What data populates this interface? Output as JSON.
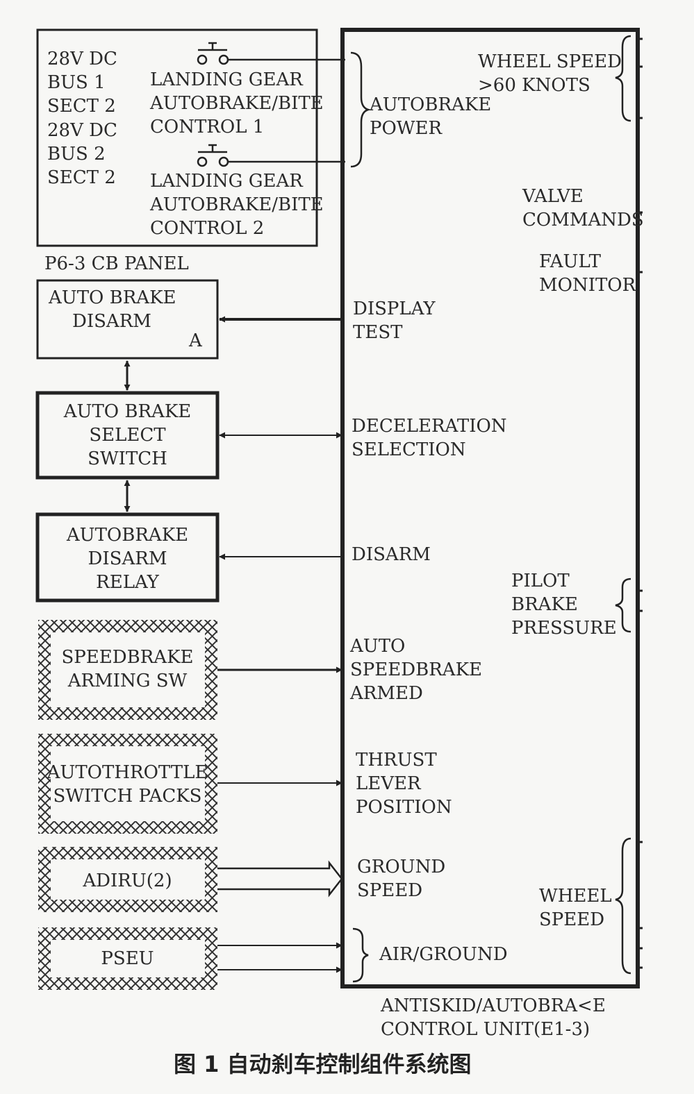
{
  "cb_panel": {
    "title": "P6-3 CB PANEL",
    "bus1": [
      "28V DC",
      "BUS 1",
      "SECT 2"
    ],
    "bus2": [
      "28V DC",
      "BUS 2",
      "SECT 2"
    ],
    "breaker1": [
      "LANDING GEAR",
      "AUTOBRAKE/BITE",
      "CONTROL 1"
    ],
    "breaker2": [
      "LANDING GEAR",
      "AUTOBRAKE/BITE",
      "CONTROL 2"
    ]
  },
  "left_boxes": {
    "disarm_light": {
      "lines": [
        "AUTO BRAKE",
        "DISARM"
      ],
      "tag": "A"
    },
    "select_switch": [
      "AUTO BRAKE",
      "SELECT",
      "SWITCH"
    ],
    "disarm_relay": [
      "AUTOBRAKE",
      "DISARM",
      "RELAY"
    ],
    "speedbrake": [
      "SPEEDBRAKE",
      "ARMING SW"
    ],
    "autothrottle": [
      "AUTOTHROTTLE",
      "SWITCH PACKS"
    ],
    "adiru": "ADIRU(2)",
    "pseu": "PSEU"
  },
  "signals": {
    "autobrake_power": [
      "AUTOBRAKE",
      "POWER"
    ],
    "display_test": [
      "DISPLAY",
      "TEST"
    ],
    "deceleration": [
      "DECELERATION",
      "SELECTION"
    ],
    "disarm": "DISARM",
    "auto_speedbrake": [
      "AUTO",
      "SPEEDBRAKE",
      "ARMED"
    ],
    "thrust_lever": [
      "THRUST",
      "LEVER",
      "POSITION"
    ],
    "ground_speed": [
      "GROUND",
      "SPEED"
    ],
    "air_ground": "AIR/GROUND"
  },
  "right_signals": {
    "wheel_speed_60": [
      "WHEEL SPEED",
      ">60 KNOTS"
    ],
    "valve_commands": [
      "VALVE",
      "COMMANDS"
    ],
    "fault_monitor": [
      "FAULT",
      "MONITOR"
    ],
    "pilot_brake": [
      "PILOT",
      "BRAKE",
      "PRESSURE"
    ],
    "wheel_speed": [
      "WHEEL",
      "SPEED"
    ]
  },
  "control_unit": [
    "ANTISKID/AUTOBRA<E",
    "CONTROL UNIT(E1-3)"
  ],
  "caption": "图 1  自动刹车控制组件系统图"
}
